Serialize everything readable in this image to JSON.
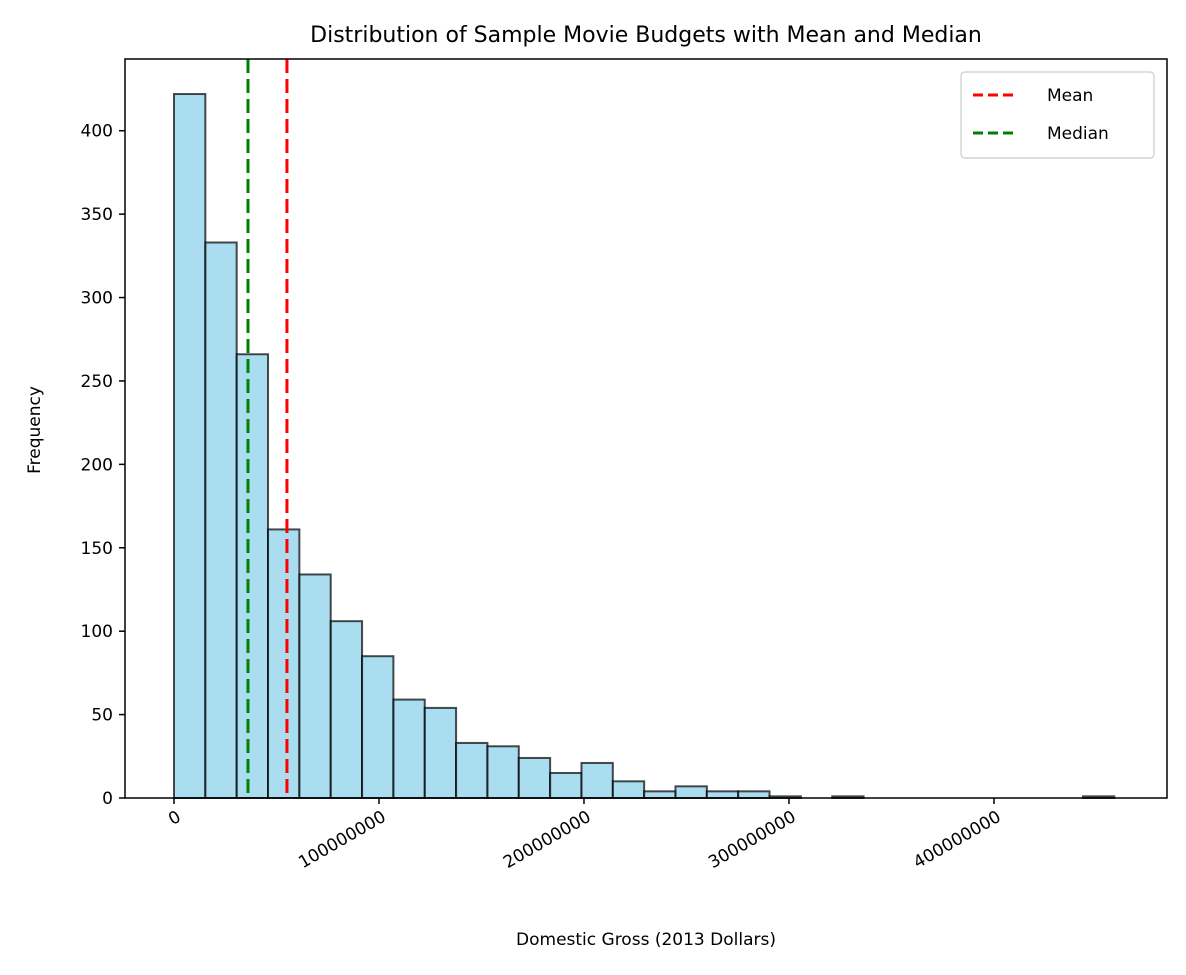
{
  "chart_data": {
    "type": "bar",
    "subtype": "histogram",
    "title": "Distribution of Sample Movie Budgets with Mean and Median",
    "xlabel": "Domestic Gross (2013 Dollars)",
    "ylabel": "Frequency",
    "xlim": [
      -23900000,
      484400000
    ],
    "ylim": [
      0,
      443
    ],
    "grid": false,
    "bin_start": 0,
    "bin_width": 15290000,
    "values": [
      422,
      333,
      266,
      161,
      134,
      106,
      85,
      59,
      54,
      33,
      31,
      24,
      15,
      21,
      10,
      4,
      7,
      4,
      4,
      1,
      0,
      1,
      0,
      0,
      0,
      0,
      0,
      0,
      0,
      1
    ],
    "bar_color": "#87ceeb",
    "edge_color": "#000000",
    "xticks": [
      0,
      100000000,
      200000000,
      300000000,
      400000000
    ],
    "xtick_labels": [
      "0",
      "100000000",
      "200000000",
      "300000000",
      "400000000"
    ],
    "yticks": [
      0,
      50,
      100,
      150,
      200,
      250,
      300,
      350,
      400
    ],
    "ytick_labels": [
      "0",
      "50",
      "100",
      "150",
      "200",
      "250",
      "300",
      "350",
      "400"
    ],
    "lines": [
      {
        "name": "Mean",
        "x": 55100000,
        "color": "#ff0000",
        "style": "dashed"
      },
      {
        "name": "Median",
        "x": 36100000,
        "color": "#008000",
        "style": "dashed"
      }
    ],
    "legend": {
      "placement": "top-right",
      "entries": [
        "Mean",
        "Median"
      ]
    }
  }
}
